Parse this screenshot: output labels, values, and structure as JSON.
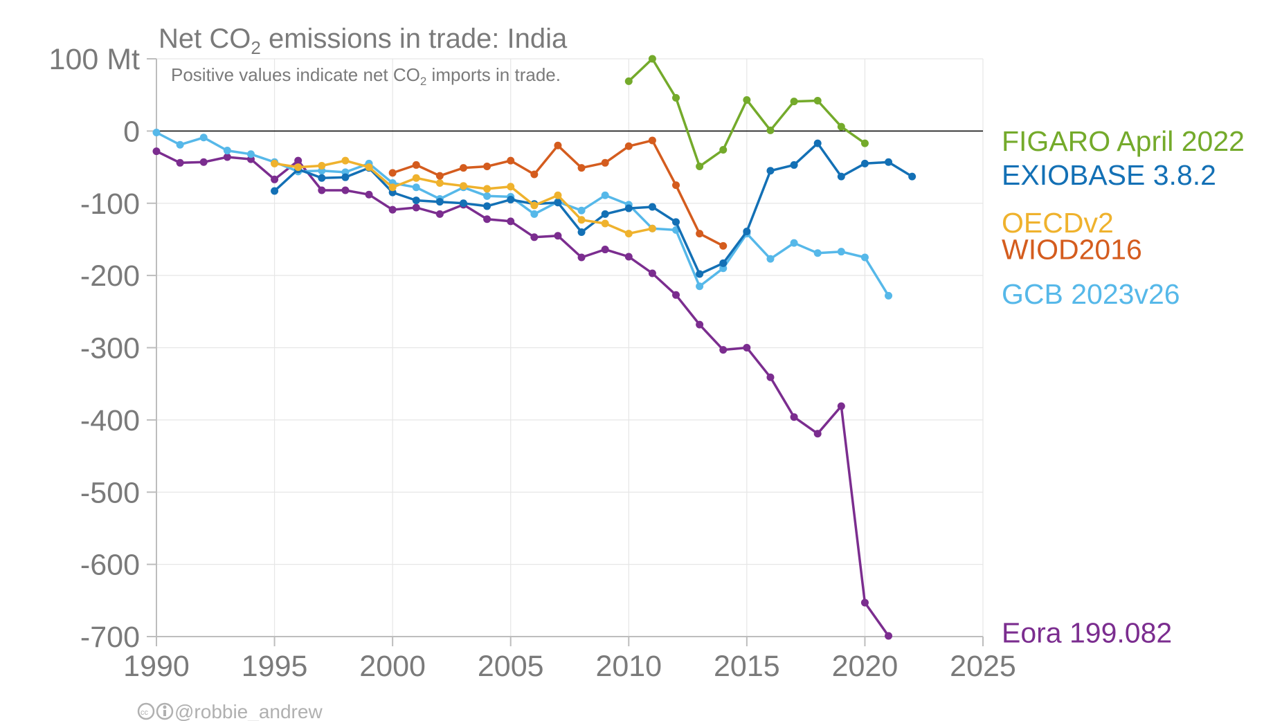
{
  "title_prefix": "Net CO",
  "title_sub": "2",
  "title_suffix": " emissions in trade: India",
  "subtitle_prefix": "Positive values indicate net CO",
  "subtitle_sub": "2",
  "subtitle_suffix": " imports in trade.",
  "credit": "@robbie_andrew",
  "colors": {
    "zero_line": "#000000",
    "grid": "#e6e6e6",
    "axis": "#bdbdbd",
    "text": "#7a7a7a"
  },
  "chart_data": {
    "type": "line",
    "xlim": [
      1990,
      2025
    ],
    "ylim": [
      -700,
      100
    ],
    "x_ticks": [
      1990,
      1995,
      2000,
      2005,
      2010,
      2015,
      2020,
      2025
    ],
    "y_ticks": [
      100,
      0,
      -100,
      -200,
      -300,
      -400,
      -500,
      -600,
      -700
    ],
    "y_tick_labels": [
      "100 Mt",
      "0",
      "-100",
      "-200",
      "-300",
      "-400",
      "-500",
      "-600",
      "-700"
    ],
    "grid": true,
    "legend": "right",
    "series": [
      {
        "name": "Eora 199.082",
        "color": "#7b2d8f",
        "x": [
          1990,
          1991,
          1992,
          1993,
          1994,
          1995,
          1996,
          1997,
          1998,
          1999,
          2000,
          2001,
          2002,
          2003,
          2004,
          2005,
          2006,
          2007,
          2008,
          2009,
          2010,
          2011,
          2012,
          2013,
          2014,
          2015,
          2016,
          2017,
          2018,
          2019,
          2020,
          2021
        ],
        "y": [
          -28,
          -44,
          -43,
          -36,
          -39,
          -67,
          -41,
          -82,
          -82,
          -88,
          -109,
          -106,
          -115,
          -102,
          -122,
          -125,
          -147,
          -145,
          -175,
          -164,
          -174,
          -197,
          -227,
          -268,
          -303,
          -300,
          -341,
          -396,
          -419,
          -381,
          -653,
          -699
        ]
      },
      {
        "name": "GCB 2023v26",
        "color": "#56b8e9",
        "x": [
          1990,
          1991,
          1992,
          1993,
          1994,
          1995,
          1996,
          1997,
          1998,
          1999,
          2000,
          2001,
          2002,
          2003,
          2004,
          2005,
          2006,
          2007,
          2008,
          2009,
          2010,
          2011,
          2012,
          2013,
          2014,
          2015,
          2016,
          2017,
          2018,
          2019,
          2020,
          2021
        ],
        "y": [
          -2,
          -19,
          -9,
          -27,
          -32,
          -43,
          -56,
          -55,
          -57,
          -45,
          -72,
          -78,
          -94,
          -78,
          -90,
          -91,
          -115,
          -98,
          -110,
          -89,
          -102,
          -135,
          -137,
          -215,
          -190,
          -142,
          -177,
          -155,
          -169,
          -167,
          -175,
          -228
        ]
      },
      {
        "name": "EXIOBASE 3.8.2",
        "color": "#1370b5",
        "x": [
          1995,
          1996,
          1997,
          1998,
          1999,
          2000,
          2001,
          2002,
          2003,
          2004,
          2005,
          2006,
          2007,
          2008,
          2009,
          2010,
          2011,
          2012,
          2013,
          2014,
          2015,
          2016,
          2017,
          2018,
          2019,
          2020,
          2021,
          2022
        ],
        "y": [
          -83,
          -53,
          -65,
          -64,
          -51,
          -85,
          -96,
          -98,
          -100,
          -104,
          -95,
          -101,
          -99,
          -140,
          -115,
          -107,
          -105,
          -126,
          -198,
          -183,
          -139,
          -55,
          -47,
          -17,
          -63,
          -45,
          -43,
          -63
        ]
      },
      {
        "name": "OECDv2",
        "color": "#efb22d",
        "x": [
          1995,
          1996,
          1997,
          1998,
          1999,
          2000,
          2001,
          2002,
          2003,
          2004,
          2005,
          2006,
          2007,
          2008,
          2009,
          2010,
          2011
        ],
        "y": [
          -45,
          -50,
          -48,
          -41,
          -50,
          -78,
          -65,
          -72,
          -76,
          -80,
          -77,
          -103,
          -89,
          -123,
          -128,
          -142,
          -135
        ]
      },
      {
        "name": "WIOD2016",
        "color": "#d45c1e",
        "x": [
          2000,
          2001,
          2002,
          2003,
          2004,
          2005,
          2006,
          2007,
          2008,
          2009,
          2010,
          2011,
          2012,
          2013,
          2014
        ],
        "y": [
          -58,
          -47,
          -62,
          -51,
          -49,
          -41,
          -60,
          -20,
          -51,
          -44,
          -21,
          -13,
          -75,
          -142,
          -159
        ]
      },
      {
        "name": "FIGARO April 2022",
        "color": "#74aa2b",
        "x": [
          2010,
          2011,
          2012,
          2013,
          2014,
          2015,
          2016,
          2017,
          2018,
          2019,
          2020
        ],
        "y": [
          69,
          100,
          46,
          -49,
          -26,
          43,
          1,
          41,
          42,
          6,
          -17
        ]
      }
    ],
    "legend_entries": [
      {
        "name": "FIGARO April 2022",
        "color": "#74aa2b",
        "y": -13
      },
      {
        "name": "EXIOBASE 3.8.2",
        "color": "#1370b5",
        "y": -60
      },
      {
        "name": "OECDv2",
        "color": "#efb22d",
        "y": -126
      },
      {
        "name": "WIOD2016",
        "color": "#d45c1e",
        "y": -163
      },
      {
        "name": "GCB 2023v26",
        "color": "#56b8e9",
        "y": -225
      },
      {
        "name": "Eora 199.082",
        "color": "#7b2d8f",
        "y": -694
      }
    ]
  }
}
